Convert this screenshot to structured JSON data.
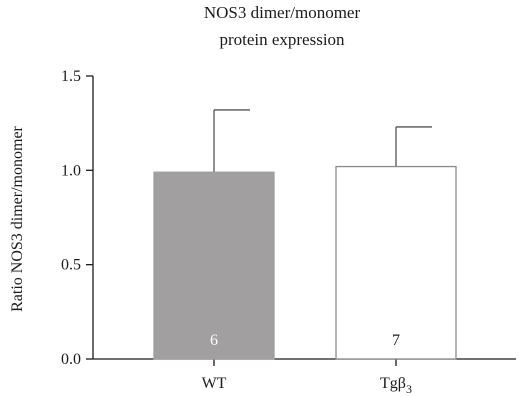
{
  "chart_data": {
    "type": "bar",
    "title_lines": [
      "NOS3 dimer/monomer",
      "protein expression"
    ],
    "ylabel": "Ratio NOS3 dimer/monomer",
    "xlabel": "",
    "categories": [
      "WT",
      "Tgβ3"
    ],
    "categories_display": [
      {
        "base": "WT",
        "sub": ""
      },
      {
        "base": "Tgβ",
        "sub": "3"
      }
    ],
    "values": [
      0.99,
      1.02
    ],
    "error_upper": [
      1.32,
      1.23
    ],
    "n_labels": [
      "6",
      "7"
    ],
    "bar_fill": [
      "#a19fa0",
      "#ffffff"
    ],
    "bar_stroke": [
      "#a19fa0",
      "#8a8a8a"
    ],
    "n_label_colors": [
      "#ffffff",
      "#1a1a1a"
    ],
    "ylim": [
      0,
      1.5
    ],
    "yticks": [
      0.0,
      0.5,
      1.0,
      1.5
    ],
    "ytick_labels": [
      "0.0",
      "0.5",
      "1.0",
      "1.5"
    ],
    "grid": false,
    "legend": "none"
  }
}
